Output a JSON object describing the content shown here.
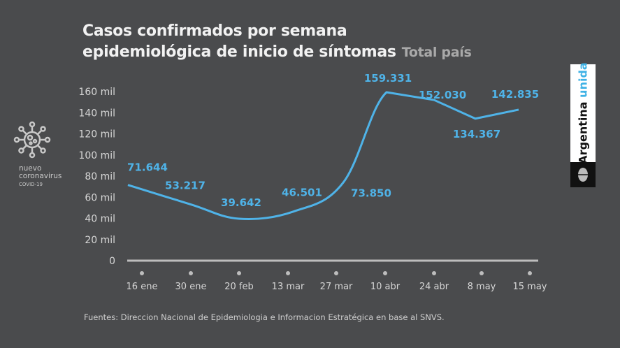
{
  "header": {
    "title_line1": "Casos confirmados por semana",
    "title_line2": "epidemiológica de inicio de síntomas",
    "subtitle": "Total país"
  },
  "branding": {
    "logo_word1": "Argentina",
    "logo_word2": "unida",
    "covid_line1": "nuevo",
    "covid_line2": "coronavirus",
    "covid_line3": "COVID-19"
  },
  "footer": {
    "source": "Fuentes: Direccion Nacional de Epidemiologia e Informacion Estratégica en base al SNVS."
  },
  "colors": {
    "background": "#4a4b4d",
    "line": "#4fb3e8",
    "axis_text": "#d6d6d6"
  },
  "chart_data": {
    "type": "line",
    "title": "Casos confirmados por semana epidemiológica de inicio de síntomas",
    "subtitle": "Total país",
    "categories": [
      "16 ene",
      "30 ene",
      "20 feb",
      "13 mar",
      "27 mar",
      "10 abr",
      "24 abr",
      "8 may",
      "15 may"
    ],
    "values": [
      71644,
      53217,
      39642,
      46501,
      73850,
      159331,
      152030,
      134367,
      142835
    ],
    "data_labels": [
      "71.644",
      "53.217",
      "39.642",
      "46.501",
      "73.850",
      "159.331",
      "152.030",
      "134.367",
      "142.835"
    ],
    "yticks": [
      0,
      20000,
      40000,
      60000,
      80000,
      100000,
      120000,
      140000,
      160000
    ],
    "ytick_labels": [
      "0",
      "20 mil",
      "40 mil",
      "60 mil",
      "80 mil",
      "100 mil",
      "120 mil",
      "140 mil",
      "160 mil"
    ],
    "ylim": [
      0,
      160000
    ],
    "grid": false
  }
}
